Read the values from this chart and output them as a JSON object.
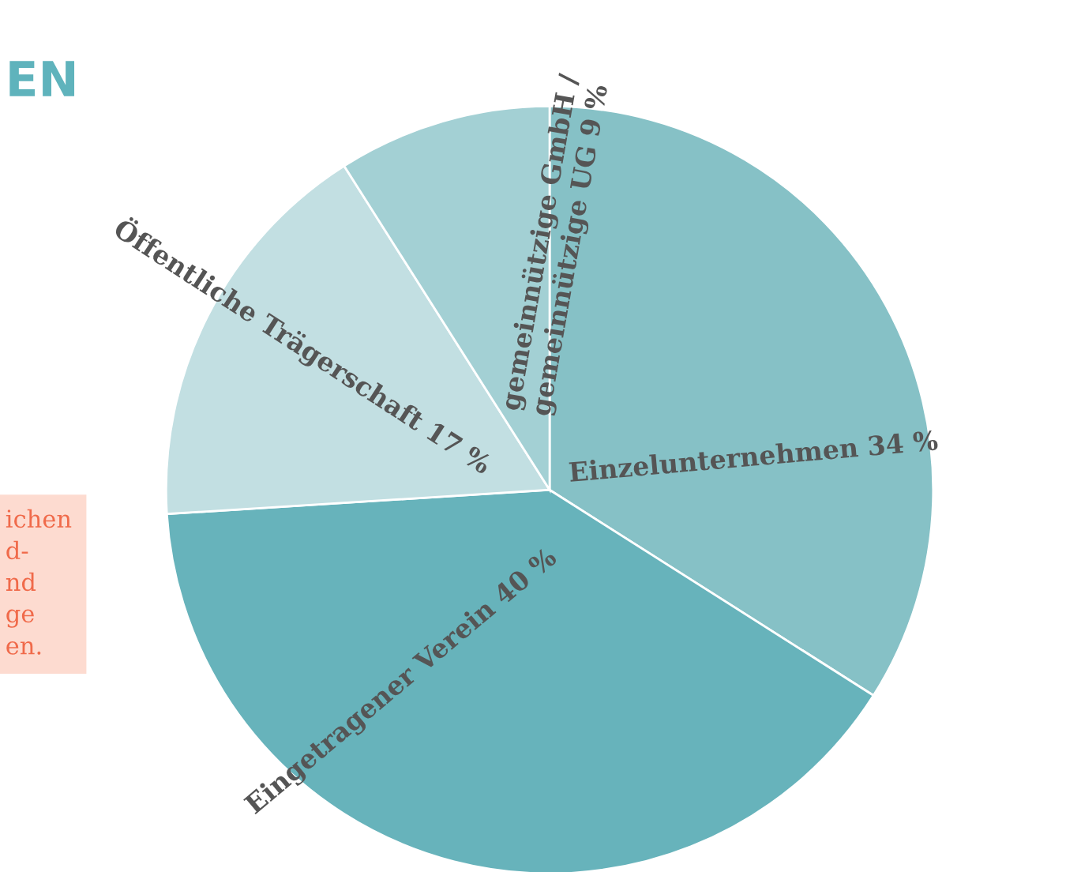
{
  "chart_data": {
    "type": "pie",
    "title": "EN",
    "categories": [
      "Einzelunternehmen",
      "Eingetragener Verein",
      "Öffentliche Trägerschaft",
      "gemeinnützige GmbH /\ngemeinnützige UG"
    ],
    "values": [
      34,
      40,
      17,
      9
    ],
    "value_labels": [
      "34 %",
      "40 %",
      "17 %",
      "9 %"
    ],
    "colors": [
      "#86c1c6",
      "#67b3bb",
      "#c2dfe2",
      "#a3d0d4"
    ],
    "annotations": [
      "ichen\nd-\nnd\nge\nen."
    ],
    "legend": false
  }
}
